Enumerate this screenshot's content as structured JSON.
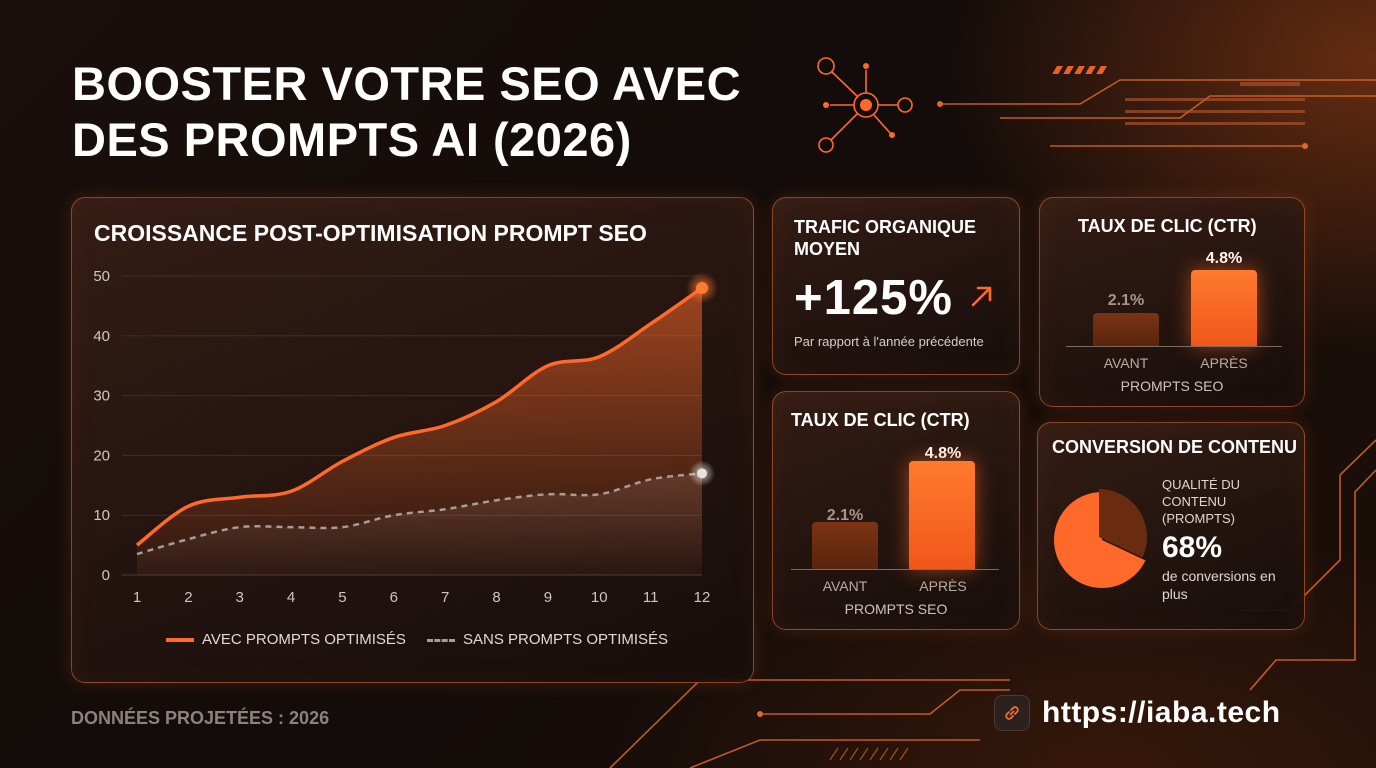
{
  "title": "BOOSTER VOTRE SEO AVEC DES PROMPTS AI (2026)",
  "colors": {
    "accent": "#ff6a2a",
    "bar_dim": "#6a2c10",
    "muted_line": "#a59d99",
    "background": "#150d0a"
  },
  "main_chart": {
    "title": "CROISSANCE POST-OPTIMISATION PROMPT SEO",
    "legend": [
      "AVEC PROMPTS OPTIMISÉS",
      "SANS PROMPTS OPTIMISÉS"
    ]
  },
  "traffic_card": {
    "title": "TRAFIC ORGANIQUE MOYEN",
    "value": "+125%",
    "icon": "arrow-up-right-icon",
    "subtitle": "Par rapport à l'année précédente"
  },
  "ctr_card_1": {
    "title": "TAUX DE CLIC (CTR)",
    "axis_label": "PROMPTS SEO"
  },
  "ctr_card_2": {
    "title": "TAUX DE CLIC (CTR)",
    "axis_label": "PROMPTS SEO"
  },
  "conversion_card": {
    "title": "CONVERSION DE CONTENU",
    "quality_label": "QUALITÉ DU CONTENU (PROMPTS)",
    "percent": "68%",
    "subtitle": "de conversions en plus"
  },
  "footer": {
    "note": "DONNÉES PROJETÉES : 2026",
    "url": "https://iaba.tech",
    "icon": "link-icon"
  },
  "chart_data": [
    {
      "type": "area",
      "title": "CROISSANCE POST-OPTIMISATION PROMPT SEO",
      "x": [
        1,
        2,
        3,
        4,
        5,
        6,
        7,
        8,
        9,
        10,
        11,
        12
      ],
      "series": [
        {
          "name": "AVEC PROMPTS OPTIMISÉS",
          "values": [
            5,
            11.5,
            13,
            14,
            19,
            23,
            25,
            29,
            35,
            36.5,
            42,
            48
          ]
        },
        {
          "name": "SANS PROMPTS OPTIMISÉS",
          "values": [
            3.5,
            6,
            8,
            8,
            8,
            10,
            11,
            12.5,
            13.5,
            13.5,
            16,
            17
          ]
        }
      ],
      "ylim": [
        0,
        50
      ],
      "yticks": [
        0,
        10,
        20,
        30,
        40,
        50
      ],
      "grid": true,
      "legend_position": "bottom"
    },
    {
      "type": "bar",
      "title": "TAUX DE CLIC (CTR)",
      "categories": [
        "AVANT",
        "APRÈS"
      ],
      "values": [
        2.1,
        4.8
      ],
      "labels": [
        "2.1%",
        "4.8%"
      ],
      "xlabel": "PROMPTS SEO"
    },
    {
      "type": "bar",
      "title": "TAUX DE CLIC (CTR)",
      "categories": [
        "AVANT",
        "APRÈS"
      ],
      "values": [
        2.1,
        4.8
      ],
      "labels": [
        "2.1%",
        "4.8%"
      ],
      "xlabel": "PROMPTS SEO"
    },
    {
      "type": "pie",
      "title": "CONVERSION DE CONTENU",
      "values": [
        68,
        32
      ],
      "labels": [
        "68%",
        ""
      ]
    }
  ]
}
